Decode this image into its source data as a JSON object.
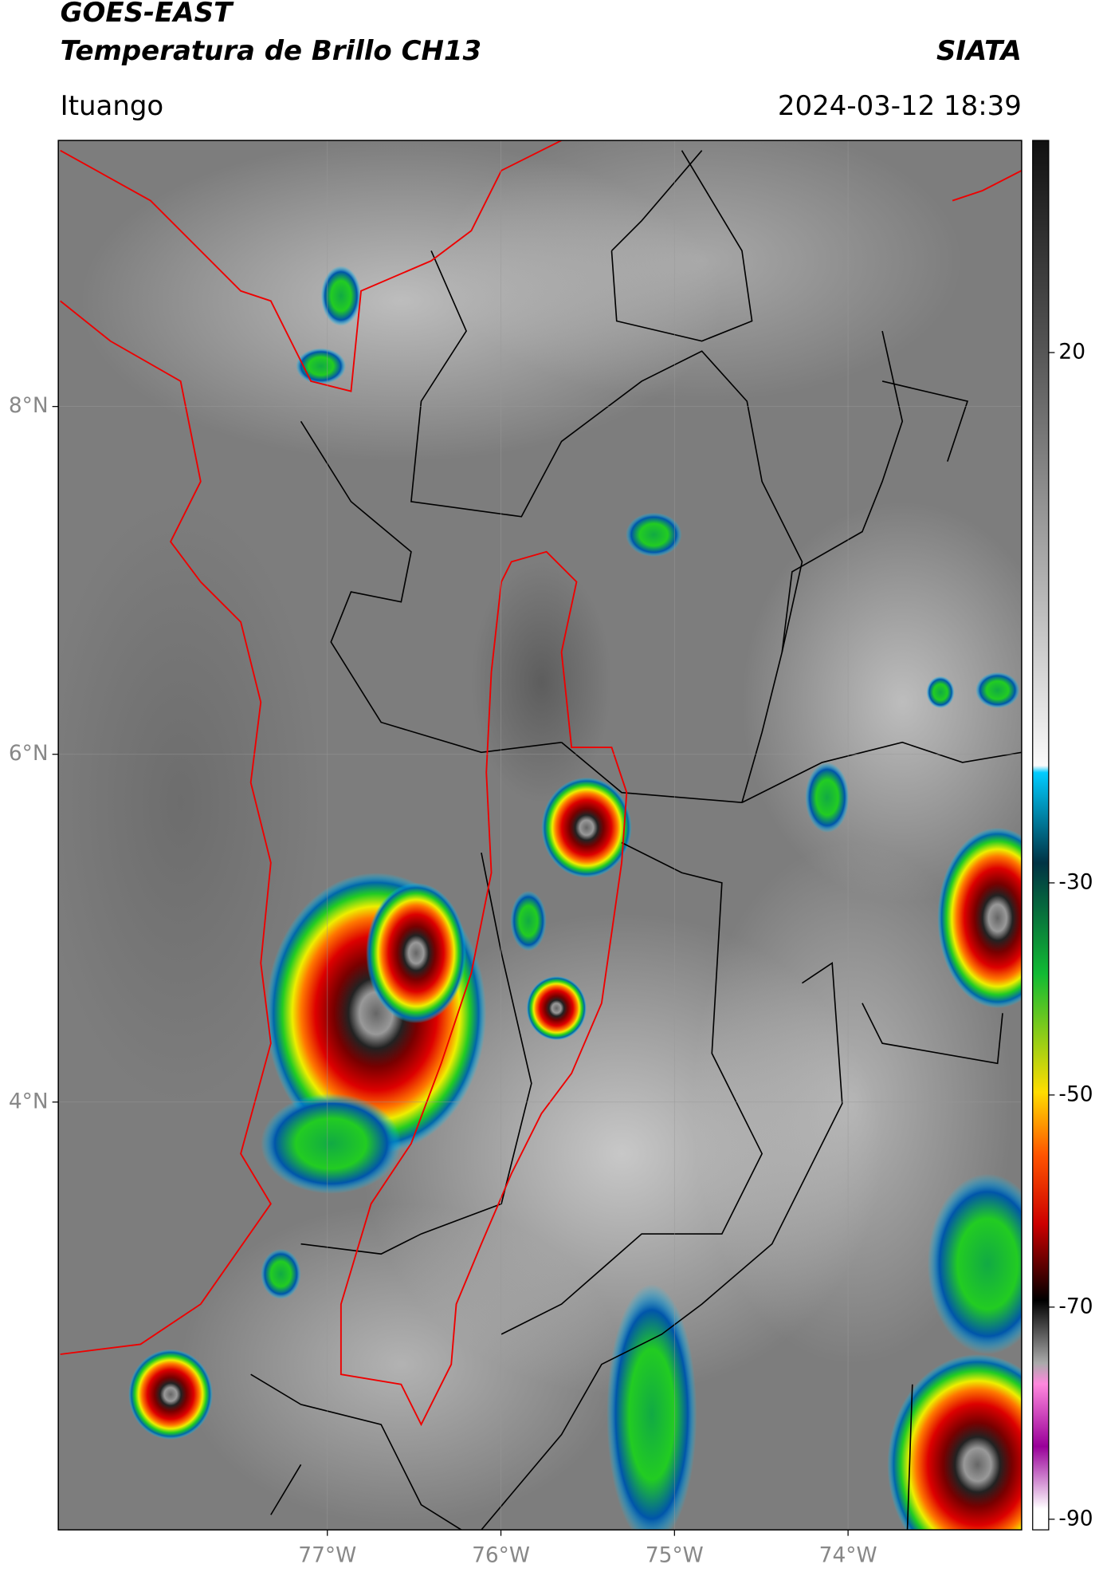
{
  "header": {
    "title": "GOES-EAST",
    "subtitle": "Temperatura de Brillo CH13",
    "agency": "SIATA",
    "location": "Ituango",
    "datetime": "2024-03-12 18:39"
  },
  "map": {
    "xlim": [
      -78.55,
      -73.0
    ],
    "ylim": [
      1.54,
      9.53
    ],
    "xticks": [
      {
        "value": -77,
        "label": "77°W"
      },
      {
        "value": -76,
        "label": "76°W"
      },
      {
        "value": -75,
        "label": "75°W"
      },
      {
        "value": -74,
        "label": "74°W"
      }
    ],
    "yticks": [
      {
        "value": 8,
        "label": "8°N"
      },
      {
        "value": 6,
        "label": "6°N"
      },
      {
        "value": 4,
        "label": "4°N"
      }
    ]
  },
  "colorbar": {
    "lim": [
      -91,
      40
    ],
    "ticks": [
      20,
      -30,
      -50,
      -70,
      -90
    ]
  }
}
